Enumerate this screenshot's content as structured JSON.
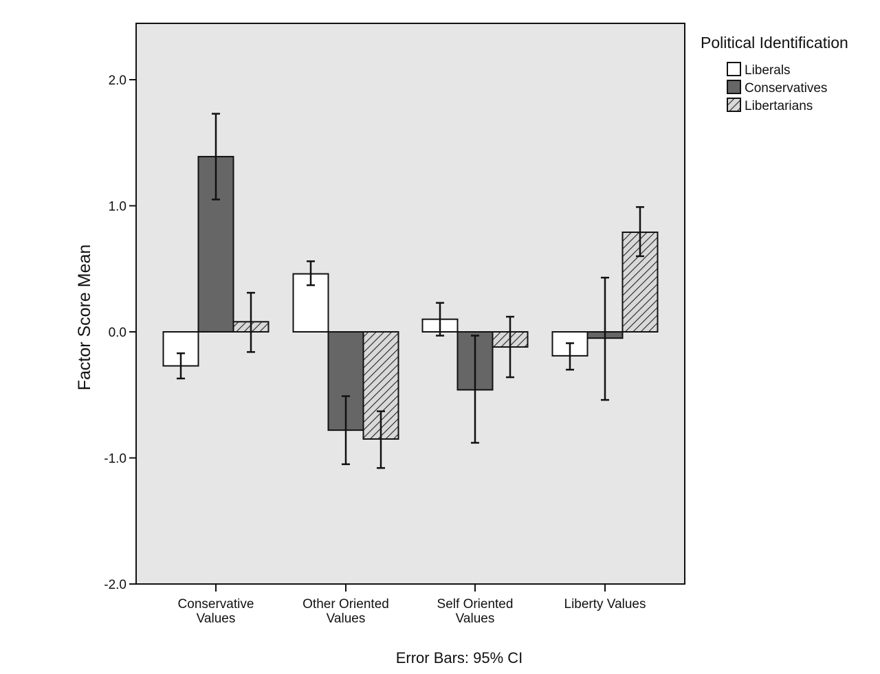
{
  "chart_data": {
    "type": "bar",
    "ylabel": "Factor Score Mean",
    "ylim": [
      -2.0,
      2.4
    ],
    "yticks": [
      -2.0,
      -1.0,
      0.0,
      1.0,
      2.0
    ],
    "ytick_labels": [
      "-2.0",
      "-1.0",
      "0.0",
      "1.0",
      "2.0"
    ],
    "categories": [
      [
        "Conservative",
        "Values"
      ],
      [
        "Other Oriented",
        "Values"
      ],
      [
        "Self Oriented",
        "Values"
      ],
      [
        "Liberty Values"
      ]
    ],
    "legend_title": "Political Identification",
    "series": [
      {
        "name": "Liberals",
        "fill": "#ffffff",
        "values": [
          -0.27,
          0.46,
          0.1,
          -0.19
        ],
        "ci_low": [
          -0.37,
          0.37,
          -0.03,
          -0.3
        ],
        "ci_high": [
          -0.17,
          0.56,
          0.23,
          -0.09
        ]
      },
      {
        "name": "Conservatives",
        "fill": "#666666",
        "values": [
          1.39,
          -0.78,
          -0.46,
          -0.05
        ],
        "ci_low": [
          1.05,
          -1.05,
          -0.88,
          -0.54
        ],
        "ci_high": [
          1.73,
          -0.51,
          -0.03,
          0.43
        ]
      },
      {
        "name": "Libertarians",
        "fill": "hatch",
        "values": [
          0.08,
          -0.85,
          -0.12,
          0.79
        ],
        "ci_low": [
          -0.16,
          -1.08,
          -0.36,
          0.6
        ],
        "ci_high": [
          0.31,
          -0.63,
          0.12,
          0.99
        ]
      }
    ],
    "footnote": "Error Bars: 95% CI",
    "colors": {
      "plot_bg": "#e6e6e6",
      "stroke": "#111111",
      "conservatives": "#666666"
    }
  }
}
